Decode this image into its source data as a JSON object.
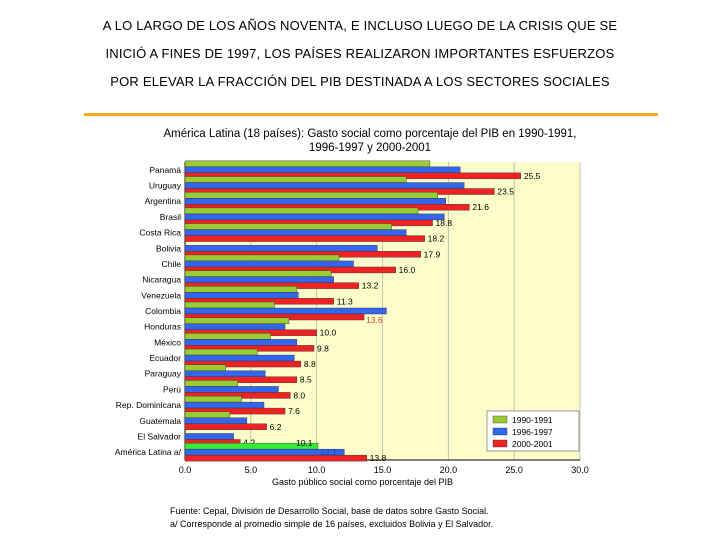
{
  "headline": {
    "line1": "A LO LARGO DE LOS AÑOS NOVENTA, E INCLUSO LUEGO DE LA CRISIS QUE SE",
    "line2": "INICIÓ A FINES DE 1997, LOS PAÍSES REALIZARON IMPORTANTES ESFUERZOS",
    "line3": "POR ELEVAR LA FRACCIÓN DEL PIB DESTINADA A LOS SECTORES SOCIALES"
  },
  "accent_color": "#f5a623",
  "chart_data": {
    "type": "bar",
    "orientation": "horizontal",
    "title": "América Latina (18 países): Gasto social como porcentaje del PIB en 1990-1991, 1996-1997 y 2000-2001",
    "xlabel": "Gasto público social como porcentaje del PIB",
    "ylabel": "",
    "xlim": [
      0,
      30
    ],
    "xticks": [
      "0.0",
      "5.0",
      "10.0",
      "15.0",
      "20.0",
      "25.0",
      "30.0"
    ],
    "categories": [
      "Panamá",
      "Uruguay",
      "Argentina",
      "Brasil",
      "Costa Rica",
      "Bolivia",
      "Chile",
      "Nicaragua",
      "Venezuela",
      "Colombia",
      "Honduras",
      "México",
      "Ecuador",
      "Paraguay",
      "Perú",
      "Rep. Dominicana",
      "Guatemala",
      "El Salvador",
      "América Latina a/"
    ],
    "series": [
      {
        "name": "1990-1991",
        "color": "#99cc33",
        "values": [
          18.6,
          16.8,
          19.2,
          17.7,
          15.7,
          null,
          11.7,
          11.1,
          8.5,
          6.8,
          7.9,
          6.5,
          5.5,
          3.1,
          4.0,
          4.3,
          3.4,
          null,
          10.1
        ]
      },
      {
        "name": "1996-1997",
        "color": "#3366ee",
        "values": [
          20.9,
          21.2,
          19.8,
          19.7,
          16.8,
          14.6,
          12.8,
          11.3,
          8.6,
          15.3,
          7.6,
          8.5,
          8.3,
          6.1,
          7.1,
          6.0,
          4.7,
          3.7,
          12.1
        ]
      },
      {
        "name": "2000-2001",
        "color": "#ee2222",
        "values": [
          25.5,
          23.5,
          21.6,
          18.8,
          18.2,
          17.9,
          16.0,
          13.2,
          11.3,
          13.6,
          10.0,
          9.8,
          8.8,
          8.5,
          8.0,
          7.6,
          6.2,
          4.2,
          13.8
        ]
      }
    ],
    "data_labels": [
      "25.5",
      "23.5",
      "21.6",
      "18.8",
      "18.2",
      "17.9",
      "16.0",
      "13.2",
      "11.3",
      "13.6",
      "10.0",
      "9.8",
      "8.8",
      "8.5",
      "8.0",
      "7.6",
      "6.2",
      "4.2",
      "13.8"
    ],
    "aggregate_labels": {
      "1990-1991": "10.1",
      "1996-1997": "12.1"
    },
    "highlight_color": "#33ee33",
    "plot_background": "#fdfccb",
    "legend_position": "bottom-right",
    "grid": true
  },
  "footnotes": {
    "source": "Fuente: Cepal, División de Desarrollo Social, base de datos sobre Gasto Social.",
    "note": "a/ Corresponde al promedio simple de 16 países, excluidos Bolivia y El Salvador."
  }
}
